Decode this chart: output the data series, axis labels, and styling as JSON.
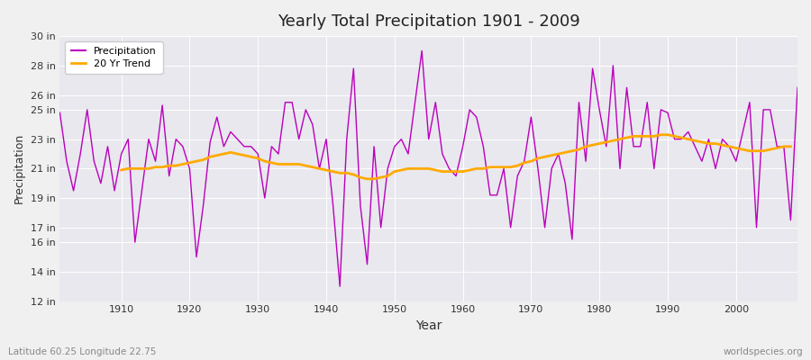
{
  "title": "Yearly Total Precipitation 1901 - 2009",
  "xlabel": "Year",
  "ylabel": "Precipitation",
  "subtitle_left": "Latitude 60.25 Longitude 22.75",
  "subtitle_right": "worldspecies.org",
  "legend_labels": [
    "Precipitation",
    "20 Yr Trend"
  ],
  "line_color": "#bb00bb",
  "trend_color": "#ffaa00",
  "fig_background": "#f0f0f0",
  "plot_background": "#e8e8ee",
  "grid_color": "#ffffff",
  "ylim": [
    12,
    30
  ],
  "yticks": [
    12,
    14,
    16,
    17,
    19,
    21,
    23,
    25,
    26,
    28,
    30
  ],
  "ytick_labels": [
    "12 in",
    "14 in",
    "16 in",
    "17 in",
    "19 in",
    "21 in",
    "23 in",
    "25 in",
    "26 in",
    "28 in",
    "30 in"
  ],
  "xticks": [
    1910,
    1920,
    1930,
    1940,
    1950,
    1960,
    1970,
    1980,
    1990,
    2000
  ],
  "xlim": [
    1901,
    2009
  ],
  "years": [
    1901,
    1902,
    1903,
    1904,
    1905,
    1906,
    1907,
    1908,
    1909,
    1910,
    1911,
    1912,
    1913,
    1914,
    1915,
    1916,
    1917,
    1918,
    1919,
    1920,
    1921,
    1922,
    1923,
    1924,
    1925,
    1926,
    1927,
    1928,
    1929,
    1930,
    1931,
    1932,
    1933,
    1934,
    1935,
    1936,
    1937,
    1938,
    1939,
    1940,
    1941,
    1942,
    1943,
    1944,
    1945,
    1946,
    1947,
    1948,
    1949,
    1950,
    1951,
    1952,
    1953,
    1954,
    1955,
    1956,
    1957,
    1958,
    1959,
    1960,
    1961,
    1962,
    1963,
    1964,
    1965,
    1966,
    1967,
    1968,
    1969,
    1970,
    1971,
    1972,
    1973,
    1974,
    1975,
    1976,
    1977,
    1978,
    1979,
    1980,
    1981,
    1982,
    1983,
    1984,
    1985,
    1986,
    1987,
    1988,
    1989,
    1990,
    1991,
    1992,
    1993,
    1994,
    1995,
    1996,
    1997,
    1998,
    1999,
    2000,
    2001,
    2002,
    2003,
    2004,
    2005,
    2006,
    2007,
    2008,
    2009
  ],
  "precipitation": [
    24.8,
    21.5,
    19.5,
    22.0,
    25.0,
    21.5,
    20.0,
    22.5,
    19.5,
    22.0,
    23.0,
    16.0,
    19.5,
    23.0,
    21.5,
    25.3,
    20.5,
    23.0,
    22.5,
    21.0,
    15.0,
    18.5,
    22.8,
    24.5,
    22.5,
    23.5,
    23.0,
    22.5,
    22.5,
    22.0,
    19.0,
    22.5,
    22.0,
    25.5,
    25.5,
    23.0,
    25.0,
    24.0,
    21.0,
    23.0,
    18.5,
    13.0,
    23.0,
    27.8,
    18.5,
    14.5,
    22.5,
    17.0,
    21.0,
    22.5,
    23.0,
    22.0,
    25.5,
    29.0,
    23.0,
    25.5,
    22.0,
    21.0,
    20.5,
    22.5,
    25.0,
    24.5,
    22.5,
    19.2,
    19.2,
    21.0,
    17.0,
    20.5,
    21.5,
    24.5,
    21.0,
    17.0,
    21.0,
    22.0,
    20.0,
    16.2,
    25.5,
    21.5,
    27.8,
    25.0,
    22.5,
    28.0,
    21.0,
    26.5,
    22.5,
    22.5,
    25.5,
    21.0,
    25.0,
    24.8,
    23.0,
    23.0,
    23.5,
    22.5,
    21.5,
    23.0,
    21.0,
    23.0,
    22.5,
    21.5,
    23.5,
    25.5,
    17.0,
    25.0,
    25.0,
    22.5,
    22.5,
    17.5,
    26.5
  ],
  "trend": [
    null,
    null,
    null,
    null,
    null,
    null,
    null,
    null,
    null,
    20.9,
    21.0,
    21.0,
    21.0,
    21.0,
    21.1,
    21.1,
    21.2,
    21.2,
    21.3,
    21.4,
    21.5,
    21.6,
    21.8,
    21.9,
    22.0,
    22.1,
    22.0,
    21.9,
    21.8,
    21.7,
    21.5,
    21.4,
    21.3,
    21.3,
    21.3,
    21.3,
    21.2,
    21.1,
    21.0,
    20.9,
    20.8,
    20.7,
    20.7,
    20.6,
    20.4,
    20.3,
    20.3,
    20.4,
    20.5,
    20.8,
    20.9,
    21.0,
    21.0,
    21.0,
    21.0,
    20.9,
    20.8,
    20.8,
    20.8,
    20.8,
    20.9,
    21.0,
    21.0,
    21.1,
    21.1,
    21.1,
    21.1,
    21.2,
    21.4,
    21.5,
    21.7,
    21.8,
    21.9,
    22.0,
    22.1,
    22.2,
    22.3,
    22.5,
    22.6,
    22.7,
    22.8,
    22.9,
    23.0,
    23.1,
    23.2,
    23.2,
    23.2,
    23.2,
    23.3,
    23.3,
    23.2,
    23.1,
    23.0,
    22.9,
    22.8,
    22.7,
    22.7,
    22.6,
    22.5,
    22.4,
    22.3,
    22.2,
    22.2,
    22.2,
    22.3,
    22.4,
    22.5,
    22.5,
    null
  ]
}
